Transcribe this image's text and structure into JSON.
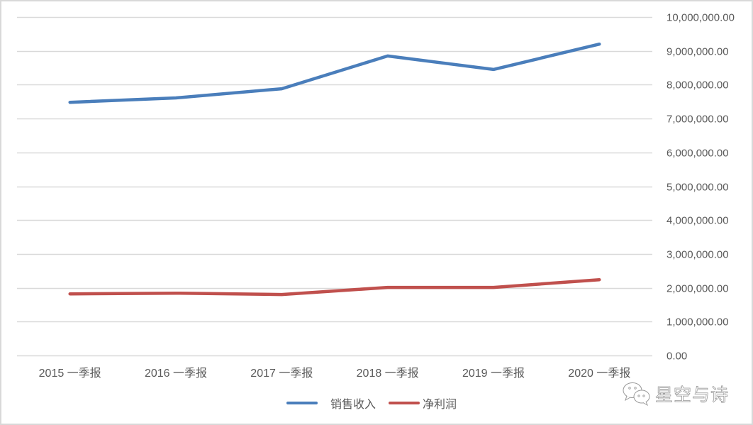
{
  "chart_data": {
    "type": "line",
    "title": "",
    "xlabel": "",
    "ylabel": "",
    "categories": [
      "2015 一季报",
      "2016 一季报",
      "2017 一季报",
      "2018 一季报",
      "2019 一季报",
      "2020 一季报"
    ],
    "series": [
      {
        "name": "销售收入",
        "color": "#4a7ebb",
        "values": [
          7480000,
          7610000,
          7880000,
          8850000,
          8450000,
          9200000
        ]
      },
      {
        "name": "净利润",
        "color": "#c0504d",
        "values": [
          1820000,
          1840000,
          1800000,
          2010000,
          2010000,
          2240000
        ]
      }
    ],
    "ylim": [
      0,
      10000000
    ],
    "y_ticks": [
      0,
      1000000,
      2000000,
      3000000,
      4000000,
      5000000,
      6000000,
      7000000,
      8000000,
      9000000,
      10000000
    ],
    "y_tick_labels": [
      "0.00",
      "1,000,000.00",
      "2,000,000.00",
      "3,000,000.00",
      "4,000,000.00",
      "5,000,000.00",
      "6,000,000.00",
      "7,000,000.00",
      "8,000,000.00",
      "9,000,000.00",
      "10,000,000.00"
    ],
    "y_axis_position": "right",
    "grid": true,
    "grid_color": "#d9d9d9",
    "legend_position": "bottom"
  },
  "legend": {
    "items": [
      {
        "label": "销售收入",
        "color": "#4a7ebb"
      },
      {
        "label": "净利润",
        "color": "#c0504d"
      }
    ]
  },
  "watermark": {
    "icon": "wechat-icon",
    "text": "星空与诗"
  }
}
